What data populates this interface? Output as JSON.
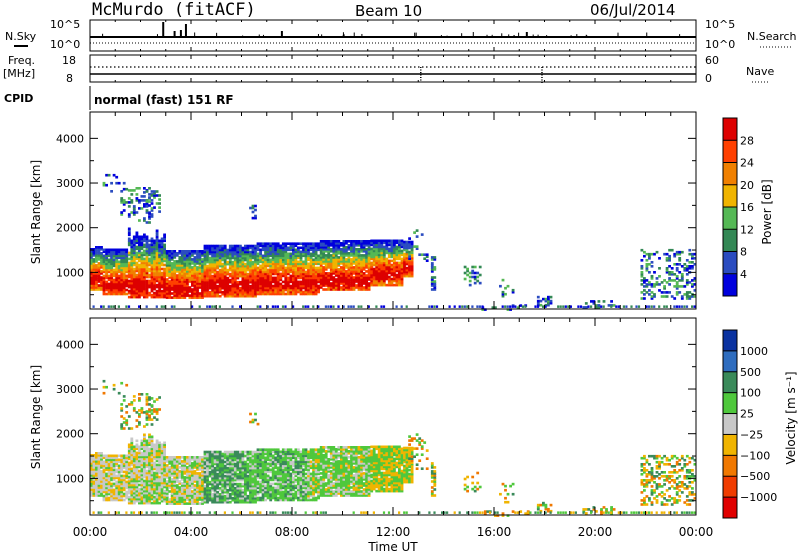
{
  "header": {
    "title": "McMurdo (fitACF)",
    "beam": "Beam 10",
    "date": "06/Jul/2014"
  },
  "panels": {
    "sky_label": "N.Sky",
    "search_label": "N.Search",
    "freq_label_1": "Freq.",
    "freq_label_2": "[MHz]",
    "nave_label": "Nave",
    "cpid_label": "CPID",
    "cpid_text": "normal (fast) 151 RF",
    "noise_ticks_left": [
      "10^5",
      "10^0"
    ],
    "noise_ticks_right": [
      "10^5",
      "10^0"
    ],
    "freq_ticks": [
      "18",
      "8"
    ],
    "nave_ticks": [
      "60",
      "0"
    ]
  },
  "chart_data": [
    {
      "type": "heatmap",
      "name": "power",
      "ylabel": "Slant Range [km]",
      "xlabel": "Time UT",
      "xticks": [
        "00:00",
        "04:00",
        "08:00",
        "12:00",
        "16:00",
        "20:00",
        "00:00"
      ],
      "xlim_hours": [
        0,
        24
      ],
      "yticks": [
        "1000",
        "2000",
        "3000",
        "4000"
      ],
      "ylim_km": [
        180,
        4590
      ],
      "colorbar_label": "Power [dB]",
      "colorbar_ticks": [
        "4",
        "8",
        "12",
        "16",
        "20",
        "24",
        "28"
      ],
      "colorbar_range": [
        0,
        32
      ],
      "colors": [
        "#0000dd",
        "#2b4cc0",
        "#338855",
        "#55b855",
        "#f0b400",
        "#f08000",
        "#ff4000",
        "#dd0000"
      ]
    },
    {
      "type": "heatmap",
      "name": "velocity",
      "ylabel": "Slant Range [km]",
      "xlabel": "Time UT",
      "xticks": [
        "00:00",
        "04:00",
        "08:00",
        "12:00",
        "16:00",
        "20:00",
        "00:00"
      ],
      "xlim_hours": [
        0,
        24
      ],
      "yticks": [
        "1000",
        "2000",
        "3000",
        "4000"
      ],
      "ylim_km": [
        180,
        4590
      ],
      "colorbar_label": "Velocity [m s⁻¹]",
      "colorbar_ticks": [
        "1000",
        "500",
        "100",
        "25",
        "−25",
        "−100",
        "−500",
        "−1000"
      ],
      "colors": [
        "#0a32a0",
        "#2f6dbf",
        "#3a8a5a",
        "#4fc83c",
        "#c8c8c8",
        "#f0b400",
        "#f07800",
        "#f03c00",
        "#e00000"
      ]
    }
  ]
}
